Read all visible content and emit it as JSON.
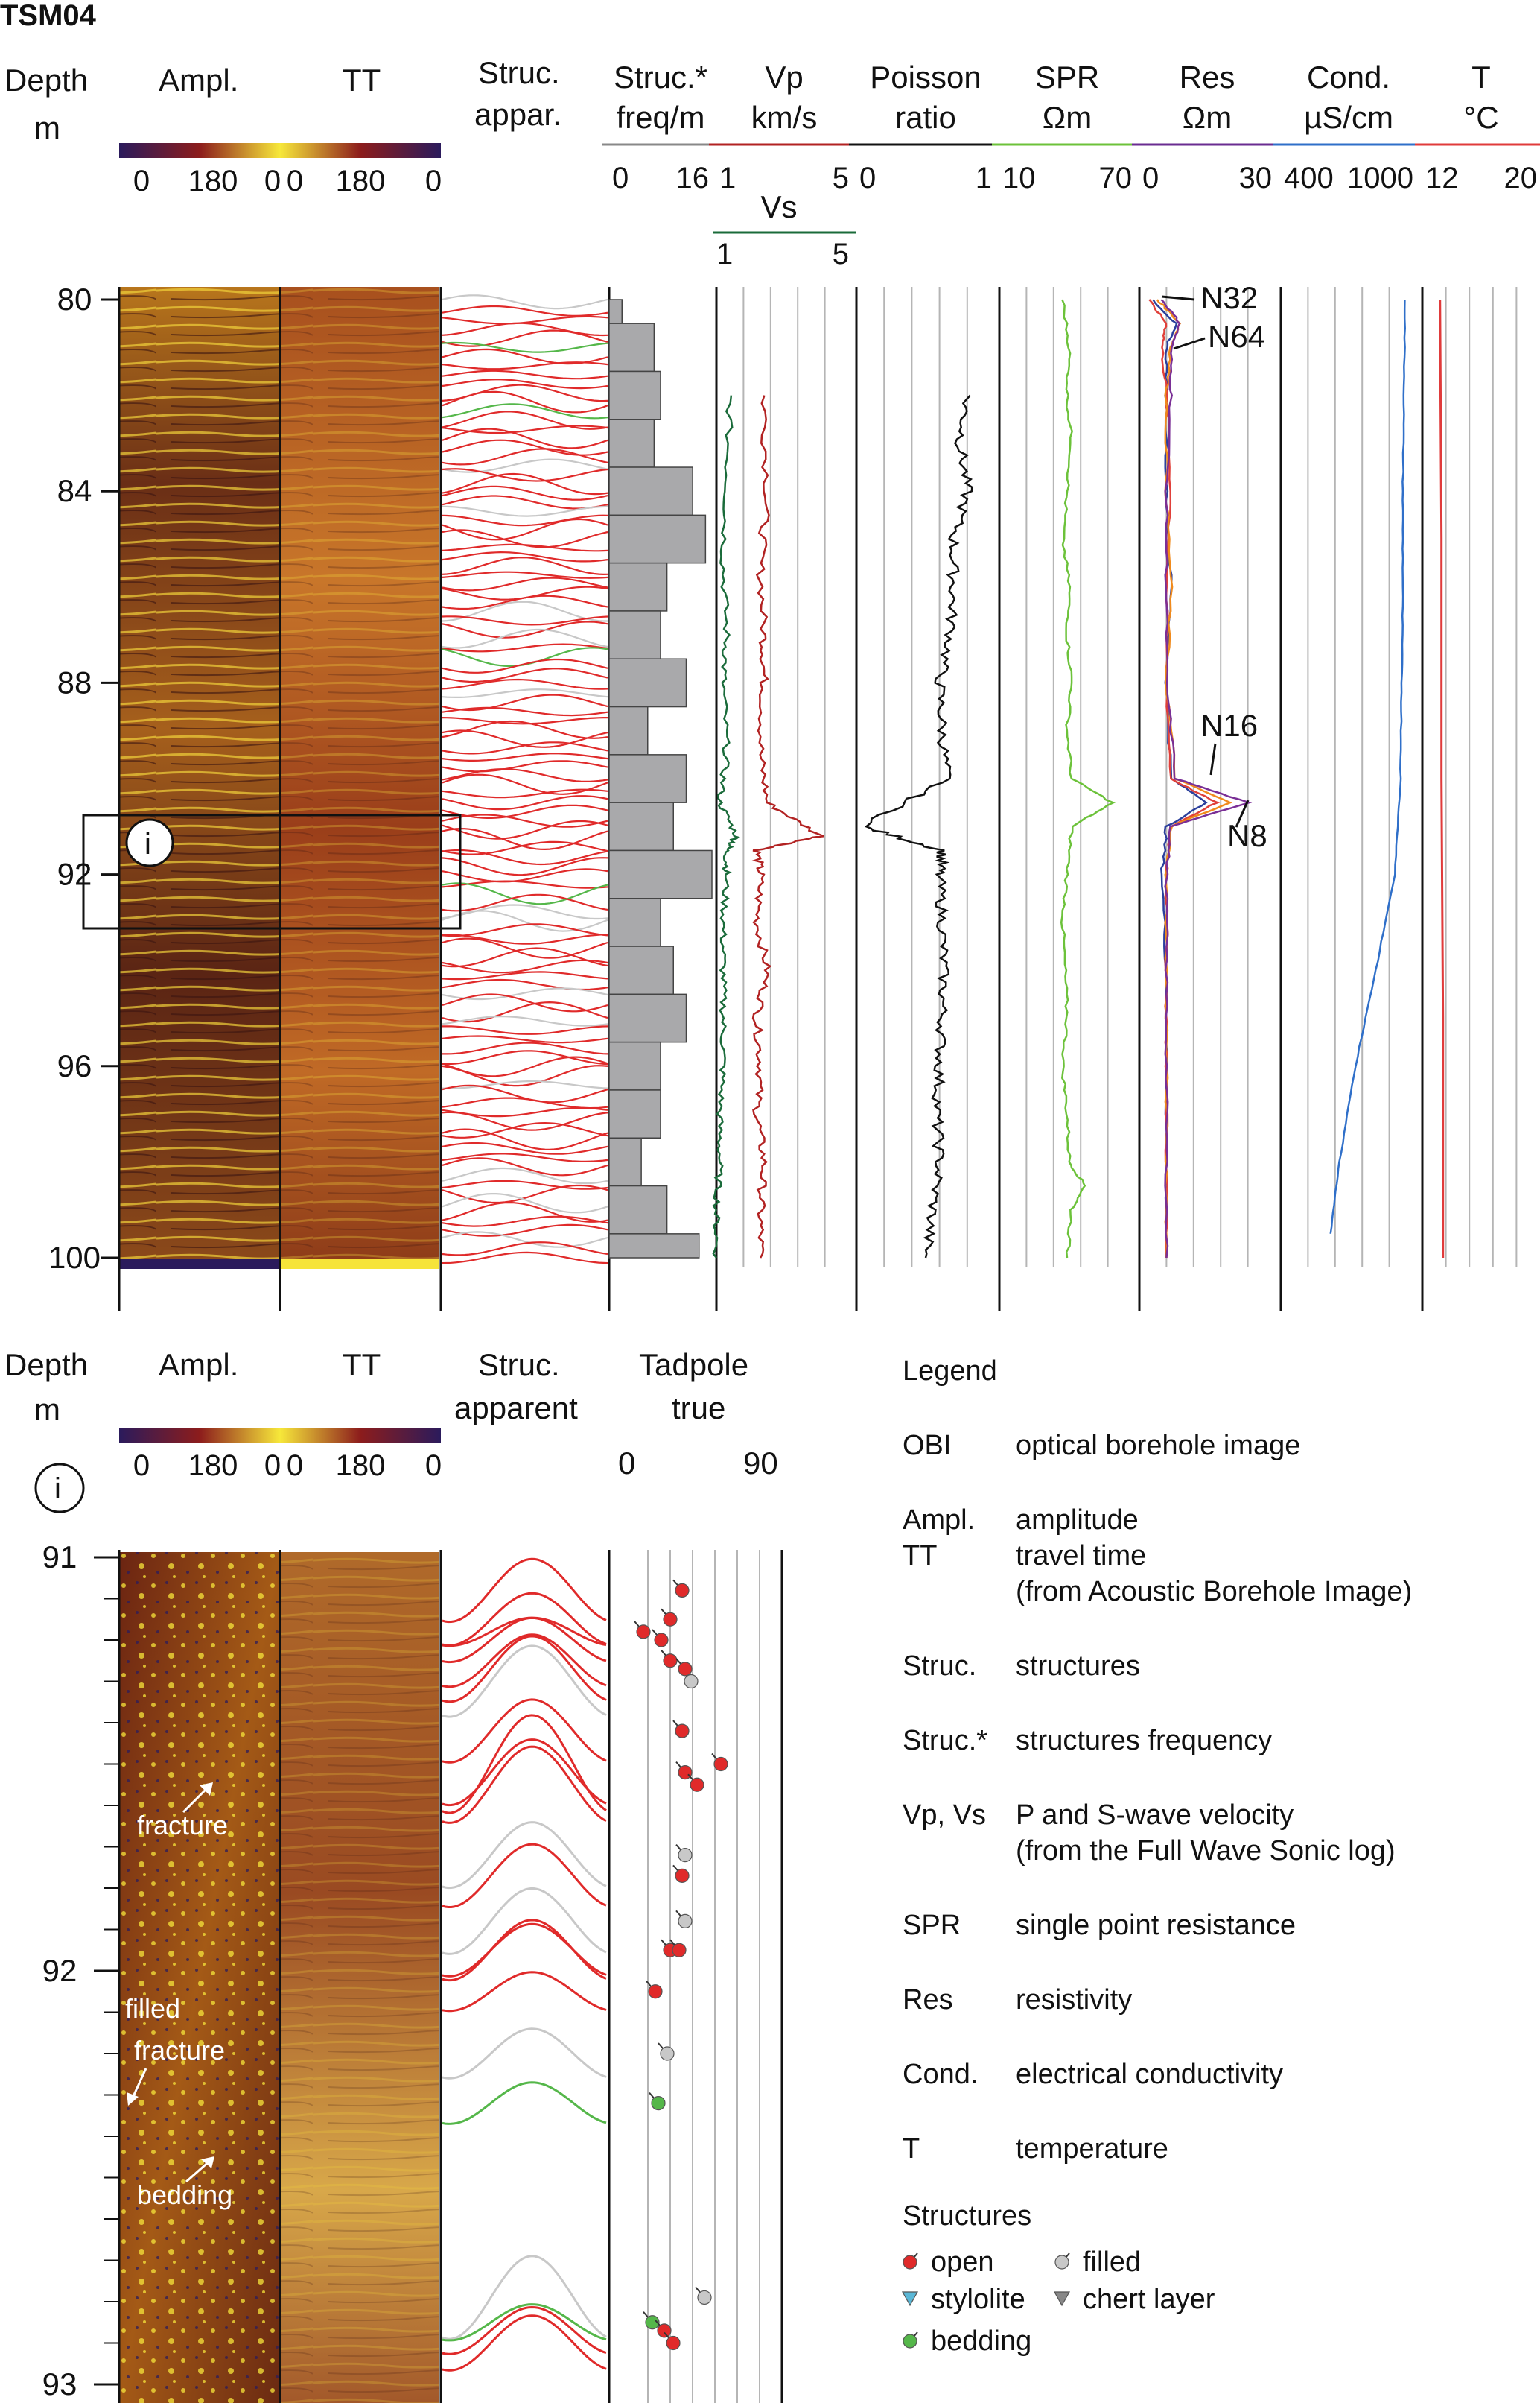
{
  "title": "TSM04",
  "top_panel": {
    "depth_header": [
      "Depth",
      "m"
    ],
    "ampl_header": "Ampl.",
    "tt_header": "TT",
    "struc_header": [
      "Struc.",
      "appar."
    ],
    "colorbar_ticks": [
      "0",
      "180",
      "0",
      "0",
      "180",
      "0"
    ],
    "tracks": [
      {
        "id": "freq",
        "label": [
          "Struc.*",
          "freq/m"
        ],
        "scale": [
          "0",
          "16"
        ],
        "color": "#888888"
      },
      {
        "id": "vp",
        "label": [
          "Vp",
          "km/s"
        ],
        "scale": [
          "1",
          "5"
        ],
        "color": "#b22222"
      },
      {
        "id": "poisson",
        "label": [
          "Poisson",
          "ratio"
        ],
        "scale": [
          "0",
          "1"
        ],
        "color": "#111111"
      },
      {
        "id": "spr",
        "label": [
          "SPR",
          "Ωm"
        ],
        "scale": [
          "10",
          "70"
        ],
        "color": "#6cc23a"
      },
      {
        "id": "res",
        "label": [
          "Res",
          "Ωm"
        ],
        "scale": [
          "0",
          "30"
        ],
        "color": "#6a2c91"
      },
      {
        "id": "cond",
        "label": [
          "Cond.",
          "µS/cm"
        ],
        "scale": [
          "400",
          "1000"
        ],
        "color": "#2f6fc9"
      },
      {
        "id": "temp",
        "label": [
          "T",
          "°C"
        ],
        "scale": [
          "12",
          "20"
        ],
        "color": "#e03b3b"
      }
    ],
    "vs": {
      "label": "Vs",
      "scale": [
        "1",
        "5"
      ],
      "color": "#1a6b3a"
    },
    "depth_ticks": [
      "80",
      "84",
      "88",
      "92",
      "96",
      "100"
    ],
    "res_annotations": [
      "N32",
      "N64",
      "N16",
      "N8"
    ],
    "inset_marker": "i"
  },
  "bottom_panel": {
    "depth_header": [
      "Depth",
      "m"
    ],
    "ampl_header": "Ampl.",
    "tt_header": "TT",
    "struc_header": [
      "Struc.",
      "apparent"
    ],
    "tadpole_header": [
      "Tadpole",
      "true"
    ],
    "tadpole_scale": [
      "0",
      "90"
    ],
    "colorbar_ticks": [
      "0",
      "180",
      "0",
      "0",
      "180",
      "0"
    ],
    "marker": "i",
    "depth_ticks": [
      "91",
      "92",
      "93"
    ],
    "annotations": [
      "fracture",
      "filled",
      "fracture",
      "bedding"
    ]
  },
  "legend": {
    "title": "Legend",
    "items": [
      {
        "abbr": "OBI",
        "desc": [
          "optical borehole image"
        ]
      },
      {
        "abbr": "Ampl.",
        "desc": [
          "amplitude"
        ]
      },
      {
        "abbr": "TT",
        "desc": [
          "travel time",
          "(from Acoustic Borehole Image)"
        ]
      },
      {
        "abbr": "Struc.",
        "desc": [
          "structures"
        ]
      },
      {
        "abbr": "Struc.*",
        "desc": [
          "structures frequency"
        ]
      },
      {
        "abbr": "Vp, Vs",
        "desc": [
          "P and S-wave velocity",
          "(from the Full Wave Sonic log)"
        ]
      },
      {
        "abbr": "SPR",
        "desc": [
          "single point resistance"
        ]
      },
      {
        "abbr": "Res",
        "desc": [
          "resistivity"
        ]
      },
      {
        "abbr": "Cond.",
        "desc": [
          "electrical conductivity"
        ]
      },
      {
        "abbr": "T",
        "desc": [
          "temperature"
        ]
      }
    ],
    "structures_title": "Structures",
    "structures": [
      {
        "label": "open",
        "color": "#e02a2a",
        "icon": "open-dot-icon"
      },
      {
        "label": "filled",
        "color": "#c8c8c8",
        "icon": "filled-dot-icon"
      },
      {
        "label": "stylolite",
        "color": "#5ab7d6",
        "icon": "stylolite-triangle-icon"
      },
      {
        "label": "chert layer",
        "color": "#888888",
        "icon": "chert-triangle-icon"
      },
      {
        "label": "bedding",
        "color": "#55b74a",
        "icon": "bedding-dot-icon"
      }
    ]
  },
  "colors": {
    "open": "#e02a2a",
    "filled": "#c8c8c8",
    "bedding": "#55b74a",
    "vp": "#b22222",
    "vs": "#1a6b3a",
    "spr": "#6cc23a",
    "cond": "#2f6fc9",
    "temp": "#e03b3b",
    "freq_bar": "#a9a9ab"
  },
  "chart_data": {
    "type": "line",
    "depth_range_top": [
      80,
      100
    ],
    "depth_range_bottom": [
      91,
      93
    ],
    "struc_freq_per_m": [
      {
        "depth": [
          80,
          80.5
        ],
        "value": 2
      },
      {
        "depth": [
          80.5,
          81.5
        ],
        "value": 7
      },
      {
        "depth": [
          81.5,
          82.5
        ],
        "value": 8
      },
      {
        "depth": [
          82.5,
          83.5
        ],
        "value": 7
      },
      {
        "depth": [
          83.5,
          84.5
        ],
        "value": 13
      },
      {
        "depth": [
          84.5,
          85.5
        ],
        "value": 15
      },
      {
        "depth": [
          85.5,
          86.5
        ],
        "value": 9
      },
      {
        "depth": [
          86.5,
          87.5
        ],
        "value": 8
      },
      {
        "depth": [
          87.5,
          88.5
        ],
        "value": 12
      },
      {
        "depth": [
          88.5,
          89.5
        ],
        "value": 6
      },
      {
        "depth": [
          89.5,
          90.5
        ],
        "value": 12
      },
      {
        "depth": [
          90.5,
          91.5
        ],
        "value": 10
      },
      {
        "depth": [
          91.5,
          92.5
        ],
        "value": 16
      },
      {
        "depth": [
          92.5,
          93.5
        ],
        "value": 8
      },
      {
        "depth": [
          93.5,
          94.5
        ],
        "value": 10
      },
      {
        "depth": [
          94.5,
          95.5
        ],
        "value": 12
      },
      {
        "depth": [
          95.5,
          96.5
        ],
        "value": 8
      },
      {
        "depth": [
          96.5,
          97.5
        ],
        "value": 8
      },
      {
        "depth": [
          97.5,
          98.5
        ],
        "value": 5
      },
      {
        "depth": [
          98.5,
          99.5
        ],
        "value": 9
      },
      {
        "depth": [
          99.5,
          100
        ],
        "value": 14
      }
    ],
    "vp_km_s": {
      "depth": [
        82,
        84,
        85.5,
        87,
        88,
        89.5,
        90.5,
        91.2,
        91.5,
        92,
        93,
        94,
        95,
        96,
        97,
        98,
        99,
        100
      ],
      "value": [
        2.4,
        2.5,
        2.3,
        2.4,
        2.4,
        2.3,
        2.5,
        4.1,
        2.2,
        2.3,
        2.2,
        2.5,
        2.2,
        2.3,
        2.2,
        2.4,
        2.3,
        2.3
      ]
    },
    "vs_km_s": {
      "depth": [
        82,
        84,
        85.5,
        87,
        88,
        89.5,
        90.5,
        91.2,
        91.5,
        92,
        93,
        94,
        95,
        96,
        97,
        98,
        99,
        100
      ],
      "value": [
        1.4,
        1.3,
        1.2,
        1.3,
        1.2,
        1.3,
        1.1,
        1.6,
        1.3,
        1.3,
        1.2,
        1.2,
        1.2,
        1.2,
        1.1,
        1.1,
        1.0,
        1.0
      ]
    },
    "poisson_ratio": {
      "depth": [
        82,
        83,
        84,
        85,
        86,
        87,
        88,
        89,
        90,
        91,
        91.5,
        92,
        93,
        94,
        95,
        96,
        97,
        98,
        99,
        100
      ],
      "value": [
        0.8,
        0.75,
        0.8,
        0.7,
        0.7,
        0.68,
        0.6,
        0.62,
        0.65,
        0.05,
        0.62,
        0.6,
        0.62,
        0.63,
        0.62,
        0.6,
        0.58,
        0.6,
        0.55,
        0.5
      ]
    },
    "spr_ohm_m": {
      "depth": [
        80,
        81,
        82,
        83,
        84,
        85,
        86,
        87,
        88,
        89,
        90,
        90.5,
        91,
        92,
        93,
        94,
        95,
        96,
        97,
        98,
        98.5,
        99,
        100
      ],
      "value": [
        38,
        41,
        40,
        42,
        40,
        38,
        41,
        40,
        42,
        40,
        42,
        60,
        42,
        40,
        38,
        39,
        40,
        38,
        40,
        41,
        48,
        42,
        40
      ]
    },
    "res_ohm_m": [
      {
        "name": "N32",
        "depth": [
          80,
          80.5,
          81,
          82,
          84,
          86,
          88,
          90,
          90.5,
          91,
          92,
          94,
          96,
          98,
          100
        ],
        "value": [
          3,
          8,
          6,
          6,
          6,
          7,
          6,
          7,
          15,
          6,
          5,
          6,
          6,
          6,
          6
        ]
      },
      {
        "name": "N64",
        "depth": [
          80,
          80.5,
          81,
          82,
          84,
          86,
          88,
          90,
          90.5,
          91,
          92,
          94,
          96,
          98,
          100
        ],
        "value": [
          2,
          6,
          5,
          6,
          7,
          6,
          6,
          7,
          17,
          7,
          6,
          6,
          6,
          6,
          6
        ]
      },
      {
        "name": "N16",
        "depth": [
          80,
          80.5,
          81,
          82,
          84,
          86,
          88,
          90,
          90.5,
          91,
          92,
          94,
          96,
          98,
          100
        ],
        "value": [
          4,
          9,
          7,
          6,
          6,
          7,
          6,
          8,
          20,
          7,
          6,
          6,
          6,
          6,
          6
        ]
      },
      {
        "name": "N8",
        "depth": [
          80,
          80.5,
          81,
          82,
          84,
          86,
          88,
          90,
          90.5,
          91,
          92,
          94,
          96,
          98,
          100
        ],
        "value": [
          5,
          9,
          7,
          7,
          6,
          6,
          6,
          8,
          24,
          7,
          6,
          6,
          6,
          6,
          6
        ]
      }
    ],
    "cond_uS_cm": {
      "depth": [
        80,
        82,
        84,
        86,
        88,
        90,
        92,
        94,
        96,
        98,
        99.5
      ],
      "value": [
        950,
        945,
        940,
        940,
        935,
        930,
        905,
        820,
        730,
        660,
        620
      ]
    },
    "temp_C": {
      "depth": [
        80,
        85,
        90,
        95,
        100
      ],
      "value": [
        13.2,
        13.3,
        13.3,
        13.4,
        13.4
      ]
    },
    "tadpoles": [
      {
        "depth": 91.08,
        "dip": 38,
        "type": "open"
      },
      {
        "depth": 91.15,
        "dip": 30,
        "type": "open"
      },
      {
        "depth": 91.18,
        "dip": 12,
        "type": "open"
      },
      {
        "depth": 91.2,
        "dip": 24,
        "type": "open"
      },
      {
        "depth": 91.25,
        "dip": 30,
        "type": "open"
      },
      {
        "depth": 91.3,
        "dip": 44,
        "type": "filled"
      },
      {
        "depth": 91.27,
        "dip": 40,
        "type": "open"
      },
      {
        "depth": 91.42,
        "dip": 38,
        "type": "open"
      },
      {
        "depth": 91.52,
        "dip": 40,
        "type": "open"
      },
      {
        "depth": 91.55,
        "dip": 48,
        "type": "open"
      },
      {
        "depth": 91.5,
        "dip": 64,
        "type": "open"
      },
      {
        "depth": 91.72,
        "dip": 40,
        "type": "filled"
      },
      {
        "depth": 91.77,
        "dip": 38,
        "type": "open"
      },
      {
        "depth": 91.88,
        "dip": 40,
        "type": "filled"
      },
      {
        "depth": 91.95,
        "dip": 30,
        "type": "open"
      },
      {
        "depth": 91.95,
        "dip": 36,
        "type": "open"
      },
      {
        "depth": 92.05,
        "dip": 20,
        "type": "open"
      },
      {
        "depth": 92.2,
        "dip": 28,
        "type": "filled"
      },
      {
        "depth": 92.32,
        "dip": 22,
        "type": "bedding"
      },
      {
        "depth": 92.79,
        "dip": 53,
        "type": "filled"
      },
      {
        "depth": 92.85,
        "dip": 18,
        "type": "bedding"
      },
      {
        "depth": 92.87,
        "dip": 26,
        "type": "open"
      },
      {
        "depth": 92.9,
        "dip": 32,
        "type": "open"
      }
    ]
  }
}
